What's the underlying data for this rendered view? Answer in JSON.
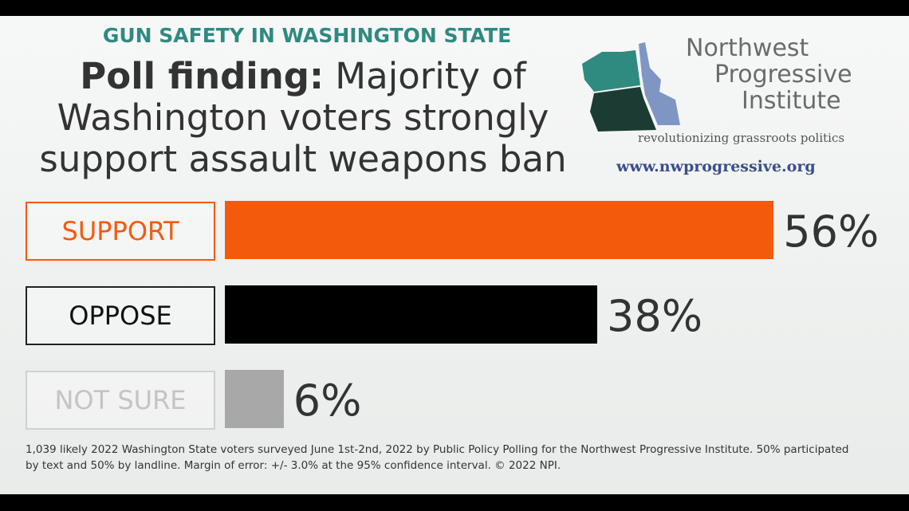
{
  "chart_data": {
    "type": "bar",
    "kicker": "GUN SAFETY IN WASHINGTON STATE",
    "title_lead": "Poll finding:",
    "title": "Majority of Washington voters strongly support assault weapons ban",
    "categories": [
      "SUPPORT",
      "OPPOSE",
      "NOT SURE"
    ],
    "values": [
      56,
      38,
      6
    ],
    "value_labels": [
      "56%",
      "38%",
      "6%"
    ],
    "colors": [
      "#f45a0c",
      "#000000",
      "#a8a8a8"
    ],
    "logo": {
      "name_lines": [
        "Northwest",
        "Progressive",
        "Institute"
      ],
      "tagline": "revolutionizing grassroots politics",
      "url": "www.nwprogressive.org"
    },
    "footnote": "1,039 likely 2022 Washington State voters surveyed June 1st-2nd, 2022 by Public Policy Polling for the Northwest Progressive Institute. 50% participated by text and 50% by landline. Margin of error: +/- 3.0% at the 95% confidence interval. © 2022 NPI."
  }
}
